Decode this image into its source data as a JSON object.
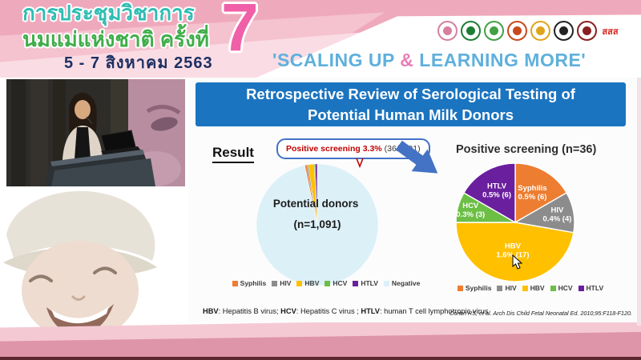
{
  "header": {
    "title_line1": "การประชุมวิชาการ",
    "title_line2": "นมแม่แห่งชาติ ครั้งที่",
    "edition_number": "7",
    "date_line": "5 - 7 สิงหาคม 2563",
    "slogan_part1": "'SCALING UP ",
    "slogan_amp": "&",
    "slogan_part2": " LEARNING MORE'",
    "colors": {
      "banner_pink": "#efa9bc",
      "title_thai_teal": "#2fbdb3",
      "subtitle_thai_green": "#3fae49",
      "date_navy": "#1d2f63",
      "edition_pink": "#f05fa8",
      "slogan_blue": "#5fb0dc",
      "slogan_amp_pink": "#e87fb4"
    },
    "logos": [
      {
        "name": "thai-breastfeeding-foundation-logo",
        "accent": "#d87fa0"
      },
      {
        "name": "department-of-health-logo",
        "accent": "#1e7e34"
      },
      {
        "name": "ministry-of-public-health-logo",
        "accent": "#43a047"
      },
      {
        "name": "university-emblem-logo",
        "accent": "#c8491d"
      },
      {
        "name": "royal-institute-emblem-logo",
        "accent": "#e0a51c"
      },
      {
        "name": "pediatric-society-emblem-logo",
        "accent": "#222222"
      },
      {
        "name": "royal-college-emblem-logo",
        "accent": "#8a1f1f"
      },
      {
        "name": "thai-health-promotion-foundation-logo",
        "accent": "#d6251f",
        "text": "สสส"
      }
    ]
  },
  "slide": {
    "title_line1": "Retrospective Review of Serological Testing of",
    "title_line2": "Potential Human Milk Donors",
    "result_label": "Result",
    "callout": {
      "highlight": "Positive screening 3.3%",
      "detail": "(36/1091)"
    },
    "footnote_segments": [
      {
        "text": "HBV",
        "bold": true
      },
      {
        "text": ": Hepatitis B virus; ",
        "bold": false
      },
      {
        "text": "HCV",
        "bold": true
      },
      {
        "text": ": Hepatitis C virus ; ",
        "bold": false
      },
      {
        "text": "HTLV",
        "bold": true
      },
      {
        "text": ": human T cell lymphotropic virus",
        "bold": false
      }
    ],
    "citation": "Cohen RS, et al. Arch Dis Child Fetal Neonatal Ed. 2010;95:F118-F120.",
    "accent_colors": {
      "title_bar_blue": "#1b74c0",
      "callout_border_blue": "#4472c4",
      "callout_text_red": "#c00000",
      "arrow_blue": "#4472c4"
    }
  },
  "chart_data": [
    {
      "type": "pie",
      "title": "Potential donors (n=1,091)",
      "center_label_line1": "Potential donors",
      "center_label_line2": "(n=1,091)",
      "categories": [
        "Syphilis",
        "HIV",
        "HBV",
        "HCV",
        "HTLV",
        "Negative"
      ],
      "values": [
        6,
        4,
        17,
        3,
        6,
        1055
      ],
      "total": 1091,
      "colors": [
        "#ED7D31",
        "#8C8C8C",
        "#FFC000",
        "#6CBE45",
        "#6A1F9E",
        "#DCF0F8"
      ],
      "legend_position": "bottom"
    },
    {
      "type": "pie",
      "title": "Positive screening (n=36)",
      "categories": [
        "Syphilis",
        "HIV",
        "HBV",
        "HCV",
        "HTLV"
      ],
      "values": [
        6,
        4,
        17,
        3,
        6
      ],
      "slice_labels": [
        [
          "Syphilis",
          "0.5% (6)"
        ],
        [
          "HIV",
          "0.4% (4)"
        ],
        [
          "HBV",
          "1.6% (17)"
        ],
        [
          "HCV",
          "0.3% (3)"
        ],
        [
          "HTLV",
          "0.5% (6)"
        ]
      ],
      "colors": [
        "#ED7D31",
        "#8C8C8C",
        "#FFC000",
        "#6CBE45",
        "#6A1F9E"
      ],
      "legend_position": "bottom"
    }
  ]
}
